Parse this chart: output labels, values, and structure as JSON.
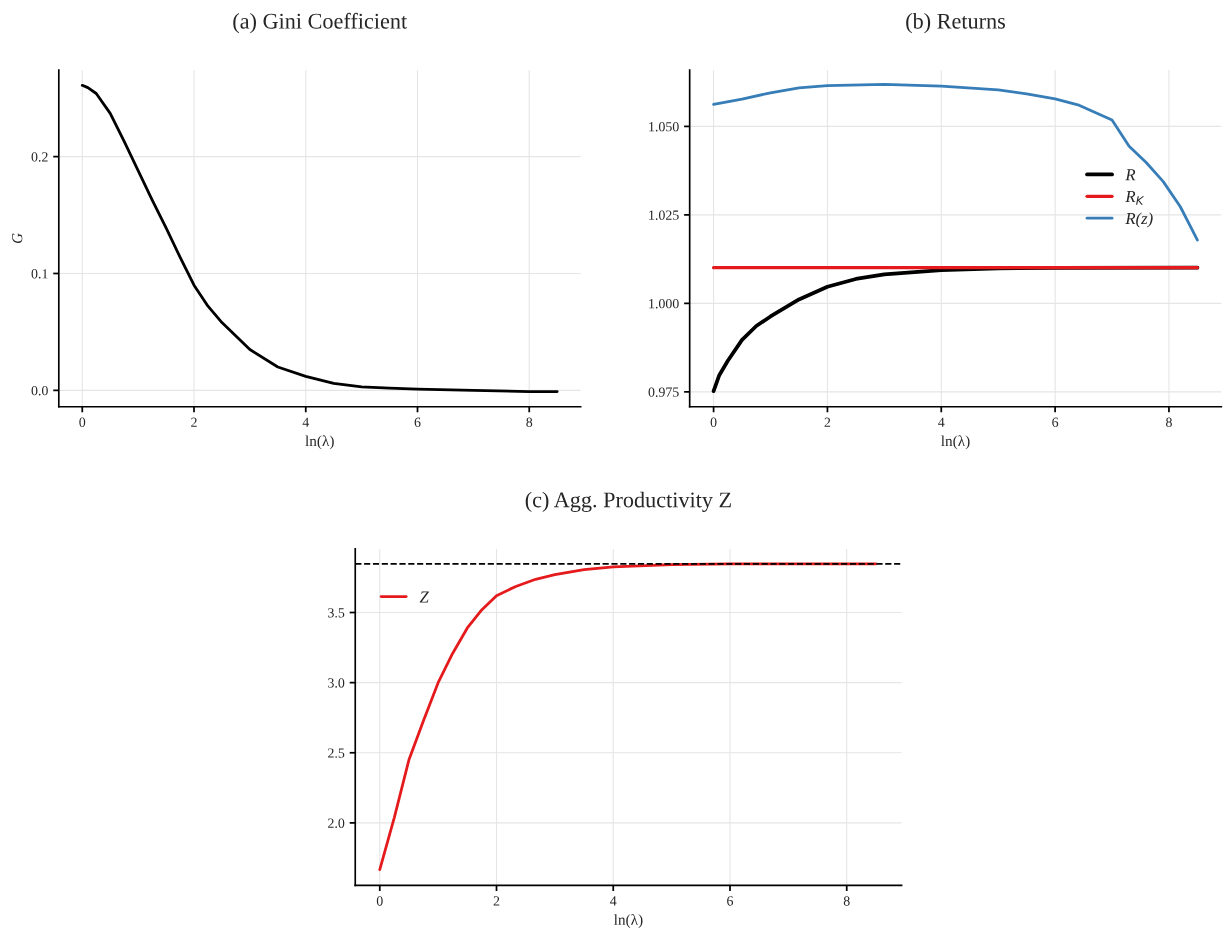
{
  "chart_data": [
    {
      "type": "line",
      "title": "(a) Gini Coefficient",
      "xlabel": "ln(λ)",
      "ylabel": "G",
      "xlim": [
        -0.42,
        8.92
      ],
      "xticks": [
        0,
        2,
        4,
        6,
        8
      ],
      "ylim": [
        -0.014,
        0.274
      ],
      "yticks": [
        {
          "value": 0.0,
          "label": "0.0"
        },
        0.1,
        0.2
      ],
      "grid": true,
      "legend": false,
      "series": [
        {
          "color": "#000000",
          "x": [
            0,
            0.1,
            0.25,
            0.5,
            0.75,
            1,
            1.25,
            1.5,
            1.75,
            2,
            2.25,
            2.5,
            3,
            3.5,
            4,
            4.5,
            5,
            5.5,
            6,
            7,
            8,
            8.5
          ],
          "values": [
            0.261,
            0.259,
            0.254,
            0.237,
            0.213,
            0.188,
            0.163,
            0.139,
            0.114,
            0.09,
            0.072,
            0.058,
            0.035,
            0.02,
            0.012,
            0.006,
            0.003,
            0.002,
            0.001,
            0.0,
            -0.001,
            -0.001
          ]
        }
      ]
    },
    {
      "type": "line",
      "title": "(b) Returns",
      "xlabel": "ln(λ)",
      "xlim": [
        -0.42,
        8.92
      ],
      "xticks": [
        0,
        2,
        4,
        6,
        8
      ],
      "ylim": [
        0.9708,
        1.0659
      ],
      "yticks": [
        {
          "value": 0.975,
          "label": "0.975"
        },
        {
          "value": 1.0,
          "label": "1.000"
        },
        {
          "value": 1.025,
          "label": "1.025"
        },
        {
          "value": 1.05,
          "label": "1.050"
        }
      ],
      "grid": true,
      "legend": "right",
      "series": [
        {
          "name": "R",
          "color": "#000000",
          "x": [
            0,
            0.1,
            0.25,
            0.5,
            0.75,
            1,
            1.5,
            2,
            2.5,
            3,
            4,
            5,
            6,
            8.5
          ],
          "values": [
            0.9752,
            0.9797,
            0.9838,
            0.9897,
            0.9936,
            0.9963,
            1.0011,
            1.0047,
            1.0069,
            1.0082,
            1.0094,
            1.0099,
            1.01,
            1.0101
          ]
        },
        {
          "name": "R$_{K}$",
          "color": "#e41a1c",
          "x": [
            0,
            8.5
          ],
          "values": [
            1.0101,
            1.0101
          ]
        },
        {
          "name": "R(z)",
          "color": "#377eb8",
          "x": [
            0,
            0.5,
            1,
            1.5,
            2,
            3,
            4,
            5,
            5.5,
            6,
            6.4,
            7,
            7.3,
            7.6,
            7.9,
            8.2,
            8.5
          ],
          "values": [
            1.0562,
            1.0577,
            1.0595,
            1.0609,
            1.0615,
            1.0619,
            1.0614,
            1.0603,
            1.0592,
            1.0578,
            1.0561,
            1.0518,
            1.0444,
            1.0398,
            1.0344,
            1.0273,
            1.0179
          ]
        }
      ]
    },
    {
      "type": "line",
      "title": "(c) Agg. Productivity Z",
      "xlabel": "ln(λ)",
      "xlim": [
        -0.42,
        8.94
      ],
      "xticks": [
        0,
        2,
        4,
        6,
        8
      ],
      "ylim": [
        1.554,
        3.954
      ],
      "yticks": [
        {
          "value": 2.0,
          "label": "2.0"
        },
        2.5,
        {
          "value": 3.0,
          "label": "3.0"
        },
        3.5
      ],
      "grid": true,
      "legend": "upper left",
      "ref_lines": [
        {
          "axis": "y",
          "value": 3.847,
          "color": "#000000",
          "line_style": "dashed"
        }
      ],
      "series": [
        {
          "name": "Z",
          "color": "#e41a1c",
          "x": [
            0,
            0.25,
            0.5,
            0.75,
            1,
            1.25,
            1.5,
            1.75,
            2,
            2.33,
            2.67,
            3,
            3.5,
            4,
            5,
            6,
            8.5
          ],
          "values": [
            1.667,
            2.04,
            2.45,
            2.73,
            3.0,
            3.21,
            3.39,
            3.52,
            3.62,
            3.686,
            3.737,
            3.77,
            3.805,
            3.825,
            3.842,
            3.847,
            3.847
          ]
        }
      ]
    }
  ]
}
